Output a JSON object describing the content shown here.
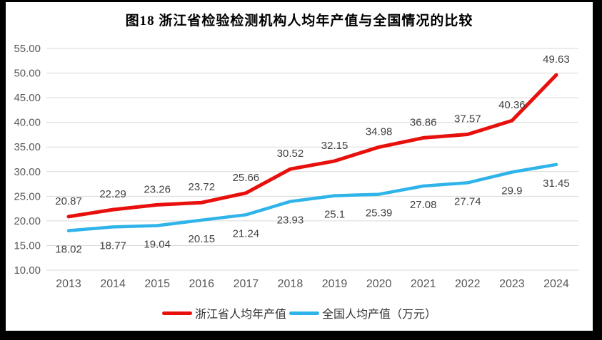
{
  "title": "图18  浙江省检验检测机构人均年产值与全国情况的比较",
  "chart_data": {
    "type": "line",
    "categories": [
      "2013",
      "2014",
      "2015",
      "2016",
      "2017",
      "2018",
      "2019",
      "2020",
      "2021",
      "2022",
      "2023",
      "2024"
    ],
    "series": [
      {
        "name": "浙江省人均年产值",
        "color": "#e8100c",
        "stroke_width": 5,
        "label_position": "above",
        "values": [
          20.87,
          22.29,
          23.26,
          23.72,
          25.66,
          30.52,
          32.15,
          34.98,
          36.86,
          37.57,
          40.36,
          49.63
        ]
      },
      {
        "name": "全国人均产值（万元）",
        "color": "#2fb4e9",
        "stroke_width": 4.5,
        "label_position": "below",
        "values": [
          18.02,
          18.77,
          19.04,
          20.15,
          21.24,
          23.93,
          25.1,
          25.39,
          27.08,
          27.74,
          29.9,
          31.45
        ]
      }
    ],
    "xlabel": "",
    "ylabel": "",
    "ylim": [
      10,
      55
    ],
    "ytick_step": 5,
    "ytick_decimals": 2,
    "grid": true,
    "legend_position": "bottom",
    "colors": {
      "gridline": "#d9d9d9",
      "axis_text": "#595959",
      "data_label_text": "#404040",
      "background": "#ffffff",
      "border": "#000000"
    }
  }
}
